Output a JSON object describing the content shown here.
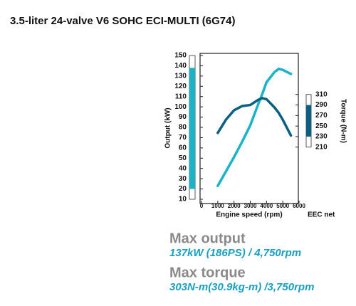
{
  "title": "3.5-liter 24-valve V6 SOHC ECI-MULTI (6G74)",
  "chart_data": {
    "type": "line",
    "xlabel": "Engine speed (rpm)",
    "note": "EEC net",
    "ylabel": "Output (kW)",
    "y2label": "Torque (N-m)",
    "x": [
      1000,
      1500,
      2000,
      2500,
      3000,
      3500,
      3750,
      4000,
      4500,
      4750,
      5000,
      5500
    ],
    "series": [
      {
        "name": "Output (kW)",
        "color": "#1ab3c8",
        "values": [
          23,
          37,
          51,
          66,
          82,
          103,
          113,
          124,
          134,
          137,
          136,
          132
        ]
      },
      {
        "name": "Torque (N-m)",
        "color": "#0b5f80",
        "axis": "y2",
        "values": [
          237,
          262,
          280,
          288,
          290,
          300,
          303,
          301,
          285,
          275,
          262,
          232
        ]
      }
    ],
    "output_band": [
      20,
      138
    ],
    "torque_band": [
      230,
      290
    ],
    "xlim": [
      0,
      6000
    ],
    "xticks": [
      0,
      1000,
      2000,
      3000,
      4000,
      5000,
      6000
    ],
    "ylim": [
      10,
      150
    ],
    "yticks": [
      10,
      20,
      30,
      40,
      50,
      60,
      70,
      80,
      90,
      100,
      110,
      120,
      130,
      140,
      150
    ],
    "y2lim": [
      111,
      384
    ],
    "y2ticks": [
      210,
      230,
      250,
      270,
      290,
      310
    ]
  },
  "specs": [
    {
      "label": "Max output",
      "value": "137kW (186PS) / 4,750rpm"
    },
    {
      "label": "Max torque",
      "value": "303N-m(30.9kg-m) /3,750rpm"
    }
  ]
}
